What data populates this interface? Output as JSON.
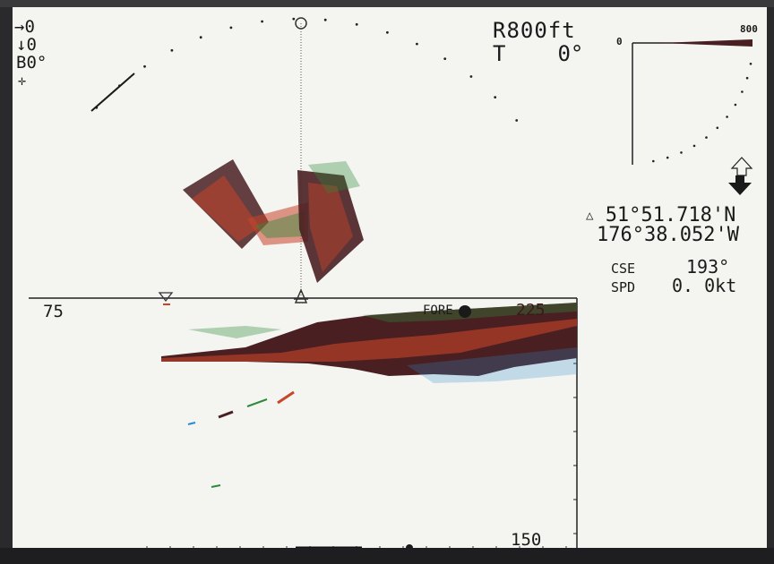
{
  "own_ship": {
    "x_arrow": "→",
    "x_value": "0",
    "y_arrow": "↓",
    "y_value": "0",
    "bearing_label": "B",
    "bearing_value": "0°",
    "cursor_symbol": "✛"
  },
  "range_readout": {
    "range_label": "R",
    "range_value": "800ft",
    "tilt_label": "T",
    "tilt_value": "0°"
  },
  "mini_scale": {
    "start_label": "0",
    "end_label": "800"
  },
  "position": {
    "marker": "△",
    "latitude": "51°51.718'N",
    "longitude": "176°38.052'W"
  },
  "nav": {
    "course_label": "CSE",
    "course_value": "193°",
    "speed_label": "SPD",
    "speed_value": "0. 0kt"
  },
  "echogram": {
    "left_depth_label": "75",
    "bottom_depth_label": "150",
    "fore_label": "FORE",
    "right_tick_label": "225"
  },
  "colors": {
    "screen_bg": "#f4f4f1",
    "echo_strong": "#4a1f22",
    "echo_medium": "#c8442a",
    "echo_weak": "#2e8a3a",
    "echo_faint": "#2a8ad0"
  }
}
